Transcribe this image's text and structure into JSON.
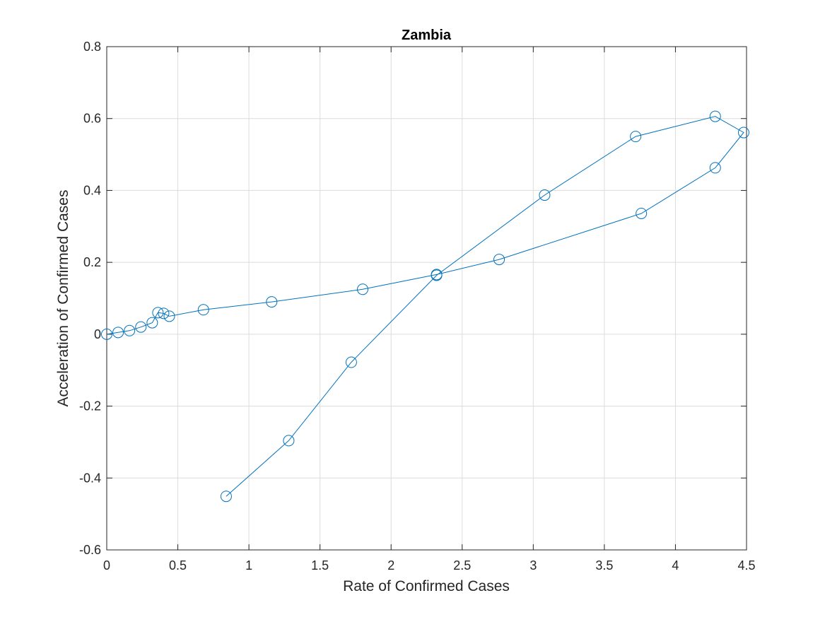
{
  "chart_data": {
    "type": "line",
    "title": "Zambia",
    "xlabel": "Rate of Confirmed Cases",
    "ylabel": "Acceleration of Confirmed Cases",
    "xlim": [
      0,
      4.5
    ],
    "ylim": [
      -0.6,
      0.8
    ],
    "xticks": [
      "0",
      "0.5",
      "1",
      "1.5",
      "2",
      "2.5",
      "3",
      "3.5",
      "4",
      "4.5"
    ],
    "yticks": [
      "-0.6",
      "-0.4",
      "-0.2",
      "0",
      "0.2",
      "0.4",
      "0.6",
      "0.8"
    ],
    "grid": true,
    "marker": "circle",
    "series_color": "#0072BD",
    "series": [
      {
        "x": [
          0,
          0.08,
          0.16,
          0.24,
          0.32,
          0.36,
          0.4,
          0.44,
          0.68,
          1.16,
          1.8,
          2.32,
          2.76,
          3.76,
          4.28,
          4.48,
          4.28,
          3.72,
          3.08,
          2.32,
          1.72,
          1.28,
          0.84
        ],
        "y": [
          0,
          0.005,
          0.01,
          0.02,
          0.032,
          0.06,
          0.058,
          0.05,
          0.068,
          0.09,
          0.125,
          0.166,
          0.208,
          0.336,
          0.463,
          0.561,
          0.606,
          0.55,
          0.387,
          0.164,
          -0.078,
          -0.296,
          -0.451
        ]
      }
    ]
  }
}
